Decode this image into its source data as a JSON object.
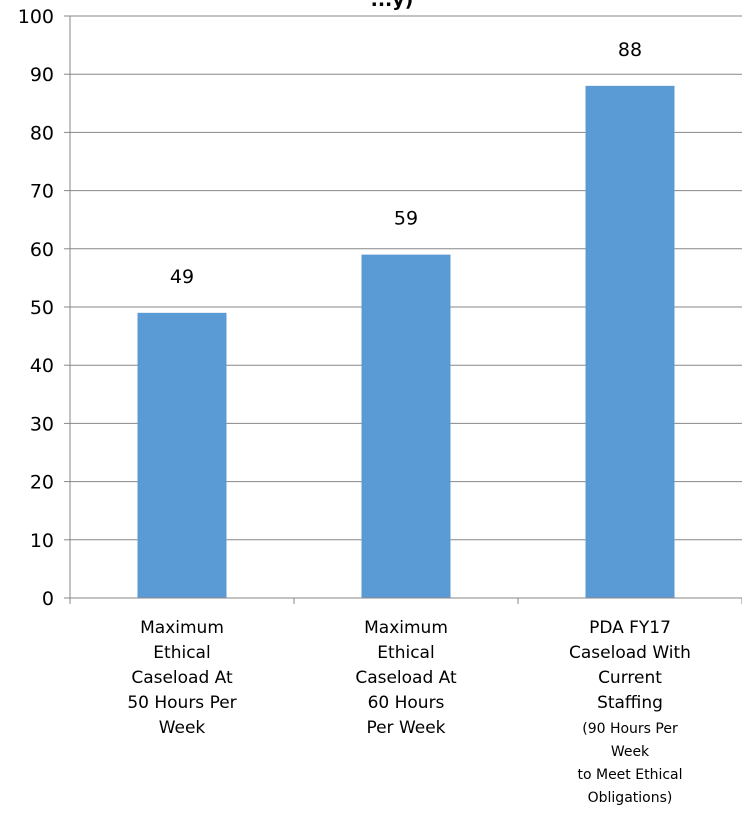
{
  "chart_data": {
    "type": "bar",
    "title": "...y)",
    "categories": [
      [
        "Maximum",
        "Ethical",
        "Caseload At",
        "50 Hours Per",
        "Week"
      ],
      [
        "Maximum",
        "Ethical",
        "Caseload At",
        "60 Hours",
        "Per Week"
      ],
      [
        "PDA FY17",
        "Caseload With",
        "Current",
        "Staffing",
        "(90 Hours Per",
        "Week",
        "to Meet Ethical",
        "Obligations)"
      ]
    ],
    "values": [
      49,
      59,
      88
    ],
    "data_labels": [
      "49",
      "59",
      "88"
    ],
    "ylim": [
      0,
      100
    ],
    "yticks": [
      0,
      10,
      20,
      30,
      40,
      50,
      60,
      70,
      80,
      90,
      100
    ],
    "grid": true,
    "colors": {
      "bar": "#5b9bd5",
      "grid": "#878787",
      "axis": "#878787"
    }
  }
}
